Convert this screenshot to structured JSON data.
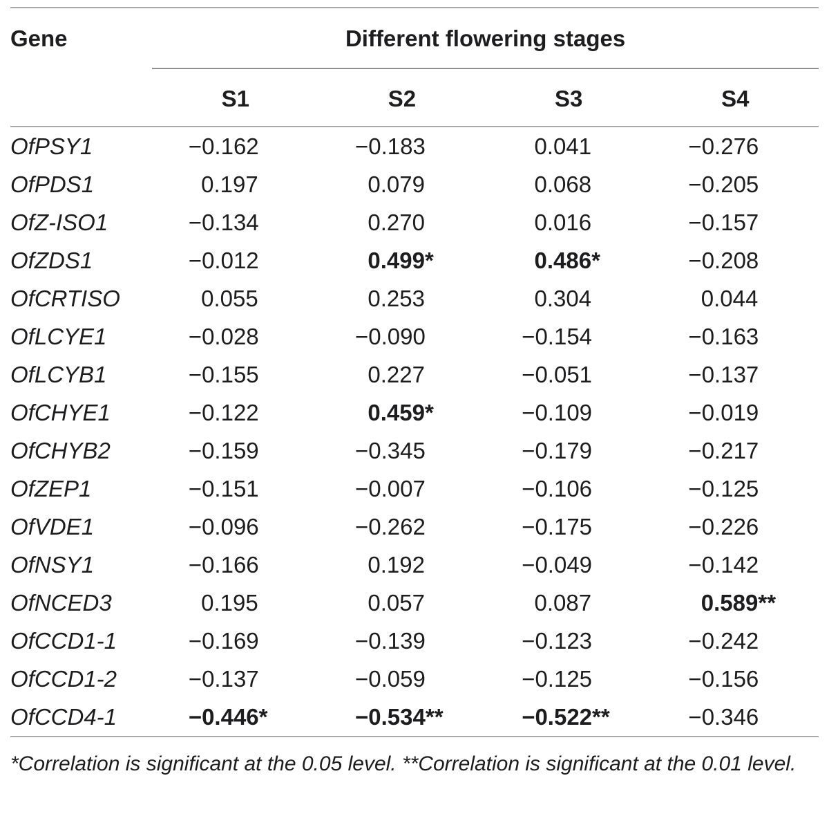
{
  "table": {
    "gene_header": "Gene",
    "group_header": "Different flowering stages",
    "stage_headers": [
      "S1",
      "S2",
      "S3",
      "S4"
    ],
    "rows": [
      {
        "gene": "OfPSY1",
        "cells": [
          {
            "value": "−0.162",
            "stars": "",
            "bold": false
          },
          {
            "value": "−0.183",
            "stars": "",
            "bold": false
          },
          {
            "value": "0.041",
            "stars": "",
            "bold": false
          },
          {
            "value": "−0.276",
            "stars": "",
            "bold": false
          }
        ]
      },
      {
        "gene": "OfPDS1",
        "cells": [
          {
            "value": "0.197",
            "stars": "",
            "bold": false
          },
          {
            "value": "0.079",
            "stars": "",
            "bold": false
          },
          {
            "value": "0.068",
            "stars": "",
            "bold": false
          },
          {
            "value": "−0.205",
            "stars": "",
            "bold": false
          }
        ]
      },
      {
        "gene": "OfZ-ISO1",
        "cells": [
          {
            "value": "−0.134",
            "stars": "",
            "bold": false
          },
          {
            "value": "0.270",
            "stars": "",
            "bold": false
          },
          {
            "value": "0.016",
            "stars": "",
            "bold": false
          },
          {
            "value": "−0.157",
            "stars": "",
            "bold": false
          }
        ]
      },
      {
        "gene": "OfZDS1",
        "cells": [
          {
            "value": "−0.012",
            "stars": "",
            "bold": false
          },
          {
            "value": "0.499",
            "stars": "*",
            "bold": true
          },
          {
            "value": "0.486",
            "stars": "*",
            "bold": true
          },
          {
            "value": "−0.208",
            "stars": "",
            "bold": false
          }
        ]
      },
      {
        "gene": "OfCRTISO",
        "cells": [
          {
            "value": "0.055",
            "stars": "",
            "bold": false
          },
          {
            "value": "0.253",
            "stars": "",
            "bold": false
          },
          {
            "value": "0.304",
            "stars": "",
            "bold": false
          },
          {
            "value": "0.044",
            "stars": "",
            "bold": false
          }
        ]
      },
      {
        "gene": "OfLCYE1",
        "cells": [
          {
            "value": "−0.028",
            "stars": "",
            "bold": false
          },
          {
            "value": "−0.090",
            "stars": "",
            "bold": false
          },
          {
            "value": "−0.154",
            "stars": "",
            "bold": false
          },
          {
            "value": "−0.163",
            "stars": "",
            "bold": false
          }
        ]
      },
      {
        "gene": "OfLCYB1",
        "cells": [
          {
            "value": "−0.155",
            "stars": "",
            "bold": false
          },
          {
            "value": "0.227",
            "stars": "",
            "bold": false
          },
          {
            "value": "−0.051",
            "stars": "",
            "bold": false
          },
          {
            "value": "−0.137",
            "stars": "",
            "bold": false
          }
        ]
      },
      {
        "gene": "OfCHYE1",
        "cells": [
          {
            "value": "−0.122",
            "stars": "",
            "bold": false
          },
          {
            "value": "0.459",
            "stars": "*",
            "bold": true
          },
          {
            "value": "−0.109",
            "stars": "",
            "bold": false
          },
          {
            "value": "−0.019",
            "stars": "",
            "bold": false
          }
        ]
      },
      {
        "gene": "OfCHYB2",
        "cells": [
          {
            "value": "−0.159",
            "stars": "",
            "bold": false
          },
          {
            "value": "−0.345",
            "stars": "",
            "bold": false
          },
          {
            "value": "−0.179",
            "stars": "",
            "bold": false
          },
          {
            "value": "−0.217",
            "stars": "",
            "bold": false
          }
        ]
      },
      {
        "gene": "OfZEP1",
        "cells": [
          {
            "value": "−0.151",
            "stars": "",
            "bold": false
          },
          {
            "value": "−0.007",
            "stars": "",
            "bold": false
          },
          {
            "value": "−0.106",
            "stars": "",
            "bold": false
          },
          {
            "value": "−0.125",
            "stars": "",
            "bold": false
          }
        ]
      },
      {
        "gene": "OfVDE1",
        "cells": [
          {
            "value": "−0.096",
            "stars": "",
            "bold": false
          },
          {
            "value": "−0.262",
            "stars": "",
            "bold": false
          },
          {
            "value": "−0.175",
            "stars": "",
            "bold": false
          },
          {
            "value": "−0.226",
            "stars": "",
            "bold": false
          }
        ]
      },
      {
        "gene": "OfNSY1",
        "cells": [
          {
            "value": "−0.166",
            "stars": "",
            "bold": false
          },
          {
            "value": "0.192",
            "stars": "",
            "bold": false
          },
          {
            "value": "−0.049",
            "stars": "",
            "bold": false
          },
          {
            "value": "−0.142",
            "stars": "",
            "bold": false
          }
        ]
      },
      {
        "gene": "OfNCED3",
        "cells": [
          {
            "value": "0.195",
            "stars": "",
            "bold": false
          },
          {
            "value": "0.057",
            "stars": "",
            "bold": false
          },
          {
            "value": "0.087",
            "stars": "",
            "bold": false
          },
          {
            "value": "0.589",
            "stars": "**",
            "bold": true
          }
        ]
      },
      {
        "gene": "OfCCD1-1",
        "cells": [
          {
            "value": "−0.169",
            "stars": "",
            "bold": false
          },
          {
            "value": "−0.139",
            "stars": "",
            "bold": false
          },
          {
            "value": "−0.123",
            "stars": "",
            "bold": false
          },
          {
            "value": "−0.242",
            "stars": "",
            "bold": false
          }
        ]
      },
      {
        "gene": "OfCCD1-2",
        "cells": [
          {
            "value": "−0.137",
            "stars": "",
            "bold": false
          },
          {
            "value": "−0.059",
            "stars": "",
            "bold": false
          },
          {
            "value": "−0.125",
            "stars": "",
            "bold": false
          },
          {
            "value": "−0.156",
            "stars": "",
            "bold": false
          }
        ]
      },
      {
        "gene": "OfCCD4-1",
        "cells": [
          {
            "value": "−0.446",
            "stars": "*",
            "bold": true
          },
          {
            "value": "−0.534",
            "stars": "**",
            "bold": true
          },
          {
            "value": "−0.522",
            "stars": "**",
            "bold": true
          },
          {
            "value": "−0.346",
            "stars": "",
            "bold": false
          }
        ]
      }
    ],
    "footnote": "*Correlation is significant at the 0.05 level. **Correlation is significant at the 0.01 level."
  }
}
